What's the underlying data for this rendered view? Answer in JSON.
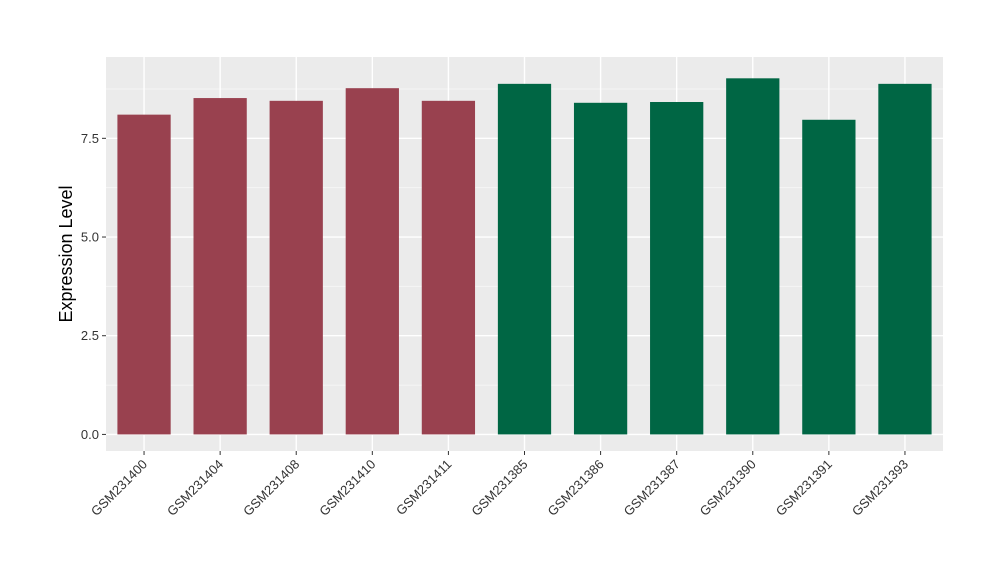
{
  "chart_data": {
    "type": "bar",
    "ylabel": "Expression Level",
    "xlabel": "",
    "title": "",
    "ylim": [
      -0.42,
      9.56
    ],
    "yticks": [
      0.0,
      2.5,
      5.0,
      7.5
    ],
    "ytick_labels": [
      "0.0",
      "2.5",
      "5.0",
      "7.5"
    ],
    "grid": true,
    "legend": "none",
    "categories": [
      "GSM231400",
      "GSM231404",
      "GSM231408",
      "GSM231410",
      "GSM231411",
      "GSM231385",
      "GSM231386",
      "GSM231387",
      "GSM231390",
      "GSM231391",
      "GSM231393"
    ],
    "values": [
      8.1,
      8.52,
      8.45,
      8.77,
      8.45,
      8.88,
      8.4,
      8.42,
      9.02,
      7.97,
      8.88
    ],
    "groups": [
      0,
      0,
      0,
      0,
      0,
      1,
      1,
      1,
      1,
      1,
      1
    ],
    "colors": {
      "group_0": "#99414F",
      "group_1": "#006644",
      "panel": "#EBEBEB",
      "grid_major": "#FFFFFF",
      "grid_minor": "#F5F5F5"
    }
  }
}
